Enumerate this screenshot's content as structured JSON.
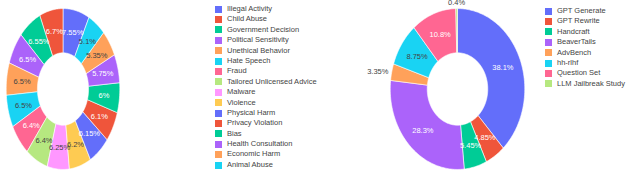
{
  "chart_data": [
    {
      "type": "pie",
      "data_labels": true,
      "legend": "right",
      "categories": [
        "Illegal Activity",
        "Child Abuse",
        "Government Decision",
        "Political Sensitivity",
        "Unethical Behavior",
        "Hate Speech",
        "Fraud",
        "Tailored Unlicensed Advice",
        "Malware",
        "Violence",
        "Physical Harm",
        "Privacy Violation",
        "Bias",
        "Health Consultation",
        "Economic Harm",
        "Animal Abuse"
      ],
      "values": [
        7.55,
        6.7,
        6.55,
        6.5,
        6.5,
        6.5,
        6.4,
        6.4,
        6.25,
        6.2,
        6.15,
        6.1,
        6,
        5.75,
        5.35,
        5.1
      ],
      "value_labels": [
        "7.55%",
        "6.7%",
        "6.55%",
        "6.5%",
        "6.5%",
        "6.5%",
        "6.4%",
        "6.4%",
        "6.25%",
        "6.2%",
        "6.15%",
        "6.1%",
        "6%",
        "5.75%",
        "5.35%",
        "5.1%"
      ],
      "colors": [
        "#636efa",
        "#EF553B",
        "#00cc96",
        "#ab63fa",
        "#FFA15A",
        "#19d3f3",
        "#FF6692",
        "#B6E880",
        "#FF97FF",
        "#FECB52",
        "#636efa",
        "#EF553B",
        "#00cc96",
        "#ab63fa",
        "#FFA15A",
        "#19d3f3"
      ]
    },
    {
      "type": "pie",
      "data_labels": true,
      "legend": "right",
      "categories": [
        "GPT Generate",
        "GPT Rewrite",
        "Handcraft",
        "BeaverTails",
        "AdvBench",
        "hh-rlhf",
        "Question Set",
        "LLM Jailbreak Study"
      ],
      "values": [
        38.1,
        4.85,
        5.45,
        28.3,
        3.35,
        8.75,
        10.8,
        0.4
      ],
      "value_labels": [
        "38.1%",
        "4.85%",
        "5.45%",
        "28.3%",
        "3.35%",
        "8.75%",
        "10.8%",
        "0.4%"
      ],
      "colors": [
        "#636efa",
        "#EF553B",
        "#00cc96",
        "#ab63fa",
        "#FFA15A",
        "#19d3f3",
        "#FF6692",
        "#B6E880"
      ]
    }
  ]
}
